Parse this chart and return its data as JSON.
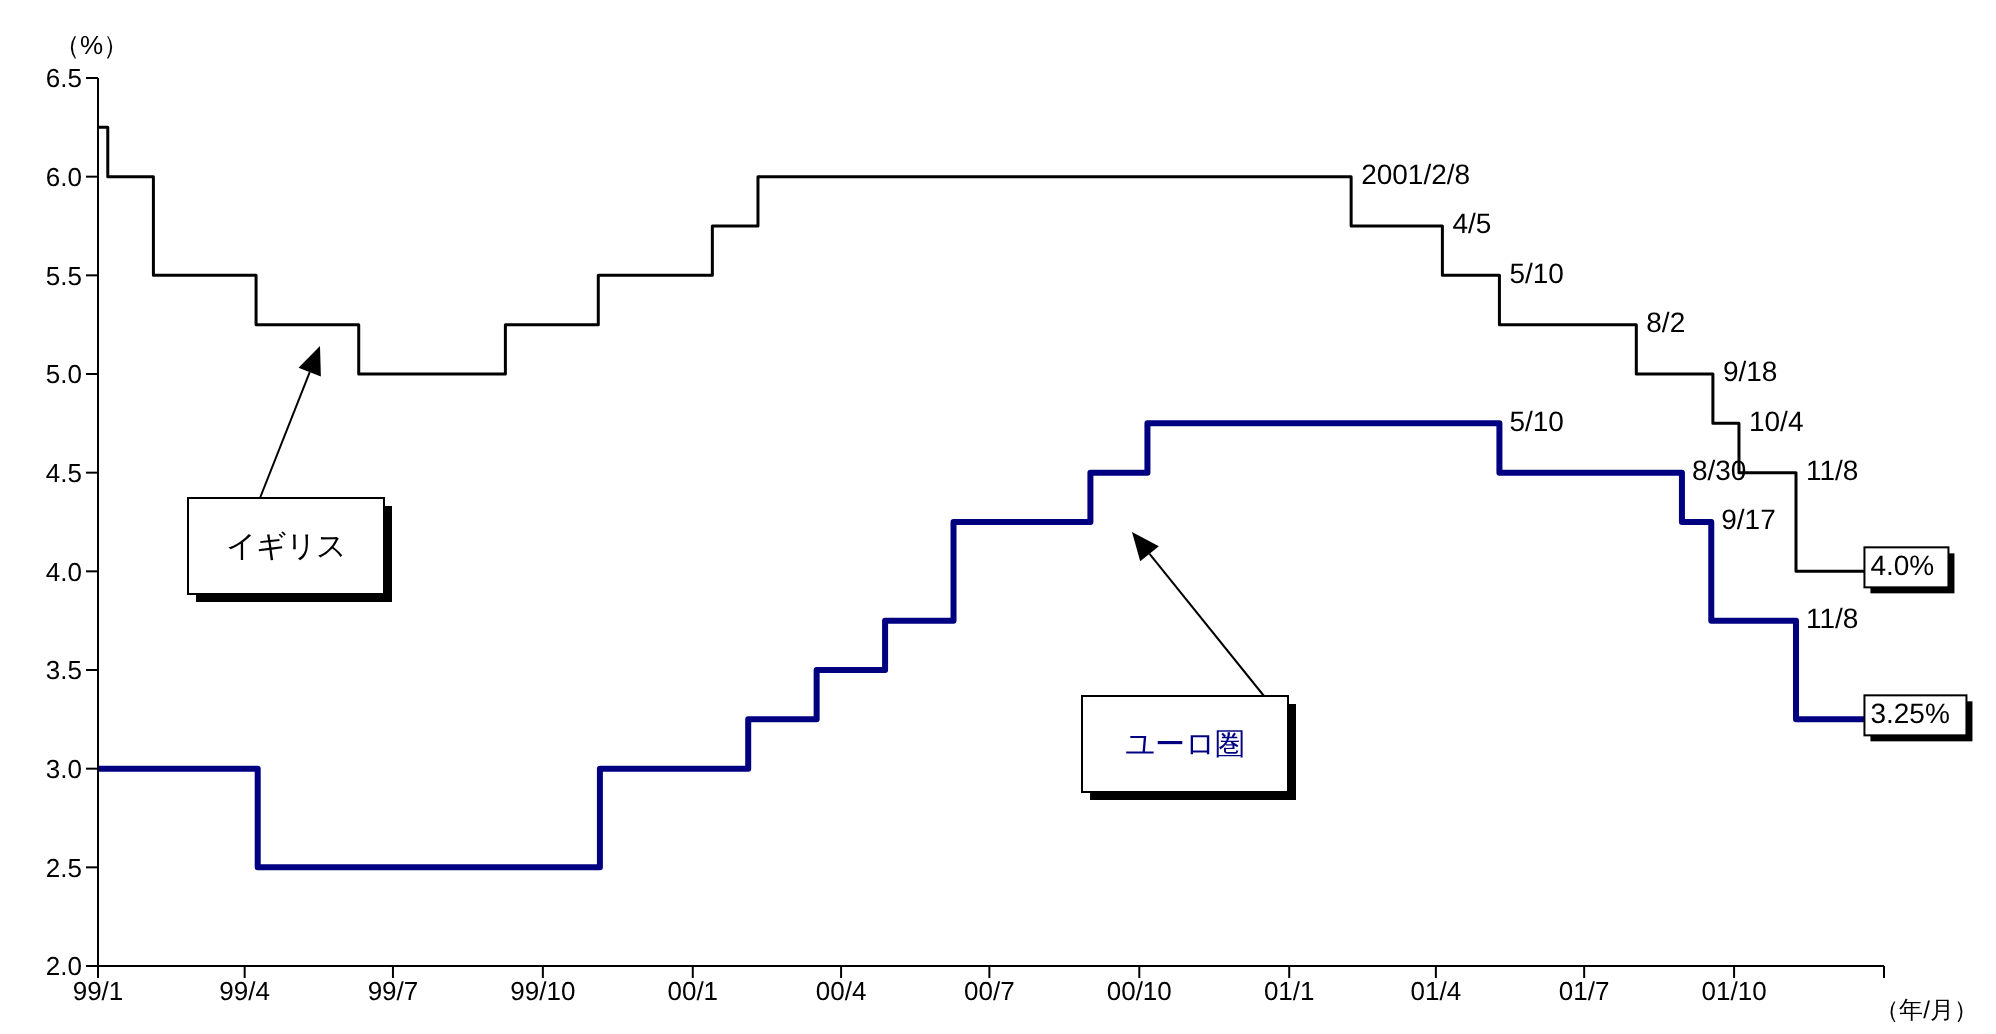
{
  "chart_data": {
    "type": "step",
    "xlabel": "（年/月）",
    "ylabel": "（%）",
    "xlim": [
      "1999-01-01",
      "2002-01-01"
    ],
    "xticks": [
      {
        "value": "1999-01-01",
        "label": "99/1"
      },
      {
        "value": "1999-04-01",
        "label": "99/4"
      },
      {
        "value": "1999-07-01",
        "label": "99/7"
      },
      {
        "value": "1999-10-01",
        "label": "99/10"
      },
      {
        "value": "2000-01-01",
        "label": "00/1"
      },
      {
        "value": "2000-04-01",
        "label": "00/4"
      },
      {
        "value": "2000-07-01",
        "label": "00/7"
      },
      {
        "value": "2000-10-01",
        "label": "00/10"
      },
      {
        "value": "2001-01-01",
        "label": "01/1"
      },
      {
        "value": "2001-04-01",
        "label": "01/4"
      },
      {
        "value": "2001-07-01",
        "label": "01/7"
      },
      {
        "value": "2001-10-01",
        "label": "01/10"
      },
      {
        "value": "2002-01-01",
        "label": null
      }
    ],
    "ylim": [
      2,
      6.5
    ],
    "yticks": [
      {
        "value": 2,
        "label": "2.0"
      },
      2.5,
      {
        "value": 3,
        "label": "3.0"
      },
      3.5,
      {
        "value": 4,
        "label": "4.0"
      },
      4.5,
      {
        "value": 5,
        "label": "5.0"
      },
      5.5,
      {
        "value": 6,
        "label": "6.0"
      },
      6.5
    ],
    "series": [
      {
        "name": "イギリス",
        "color": "#000000",
        "x": [
          "1999-01-01",
          "1999-01-07",
          "1999-02-04",
          "1999-04-08",
          "1999-06-10",
          "1999-09-08",
          "1999-11-04",
          "2000-01-13",
          "2000-02-10",
          "2001-02-08",
          "2001-04-05",
          "2001-05-10",
          "2001-08-02",
          "2001-09-18",
          "2001-10-04",
          "2001-11-08",
          "2001-12-20"
        ],
        "values": [
          6.25,
          6.0,
          5.5,
          5.25,
          5.0,
          5.25,
          5.5,
          5.75,
          6.0,
          5.75,
          5.5,
          5.25,
          5.0,
          4.75,
          4.5,
          4.0,
          4.0
        ]
      },
      {
        "name": "ユーロ圏",
        "color": "#000080",
        "x": [
          "1999-01-01",
          "1999-04-09",
          "1999-11-05",
          "2000-02-04",
          "2000-03-17",
          "2000-04-28",
          "2000-06-09",
          "2000-09-01",
          "2000-10-06",
          "2001-05-10",
          "2001-08-30",
          "2001-09-17",
          "2001-11-08",
          "2001-12-20"
        ],
        "values": [
          3.0,
          2.5,
          3.0,
          3.25,
          3.5,
          3.75,
          4.25,
          4.5,
          4.75,
          4.5,
          4.25,
          3.75,
          3.25,
          3.25
        ]
      }
    ],
    "annotations": [
      {
        "text": "2001/2/8",
        "x": "2001-02-08",
        "y": 6.0
      },
      {
        "text": "4/5",
        "x": "2001-04-05",
        "y": 5.75
      },
      {
        "text": "5/10",
        "x": "2001-05-10",
        "y": 5.5
      },
      {
        "text": "8/2",
        "x": "2001-08-02",
        "y": 5.25
      },
      {
        "text": "9/18",
        "x": "2001-09-18",
        "y": 5.0
      },
      {
        "text": "10/4",
        "x": "2001-10-04",
        "y": 4.75
      },
      {
        "text": "11/8",
        "x": "2001-11-08",
        "y": 4.5
      },
      {
        "text": "5/10",
        "x": "2001-05-10",
        "y": 4.75
      },
      {
        "text": "8/30",
        "x": "2001-08-30",
        "y": 4.5
      },
      {
        "text": "9/17",
        "x": "2001-09-17",
        "y": 4.25
      },
      {
        "text": "11/8",
        "x": "2001-11-08",
        "y": 3.75
      },
      {
        "text": "4.0%",
        "x": "2001-12-20",
        "y": 4.0
      },
      {
        "text": "3.25%",
        "x": "2001-12-20",
        "y": 3.25
      }
    ]
  }
}
